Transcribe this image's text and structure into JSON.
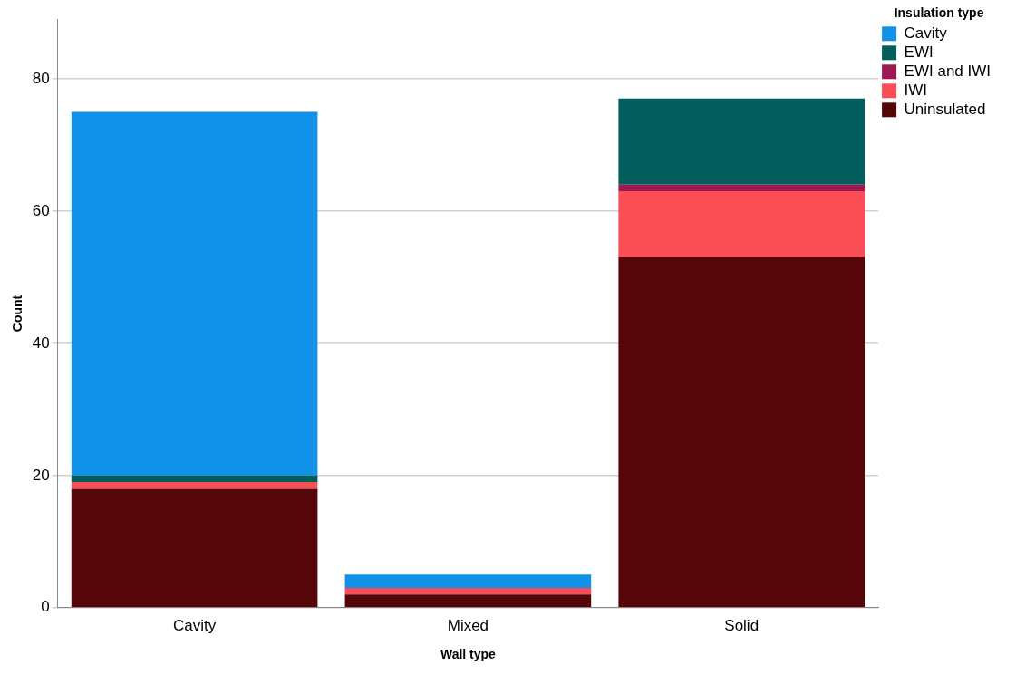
{
  "chart_data": {
    "type": "bar",
    "xlabel": "Wall type",
    "ylabel": "Count",
    "legend_title": "Insulation type",
    "categories": [
      "Cavity",
      "Mixed",
      "Solid"
    ],
    "series": [
      {
        "name": "Uninsulated",
        "color": "#560509",
        "values": [
          18,
          2,
          53
        ]
      },
      {
        "name": "IWI",
        "color": "#fa4d56",
        "values": [
          1,
          1,
          10
        ]
      },
      {
        "name": "EWI and IWI",
        "color": "#9f1853",
        "values": [
          0,
          0,
          1
        ]
      },
      {
        "name": "EWI",
        "color": "#025d5d",
        "values": [
          1,
          0,
          13
        ]
      },
      {
        "name": "Cavity",
        "color": "#1192e8",
        "values": [
          55,
          2,
          0
        ]
      }
    ],
    "stacked": true,
    "ylim": [
      0,
      89
    ],
    "yticks": [
      0,
      20,
      40,
      60,
      80
    ],
    "grid": "y",
    "legend": "top right"
  }
}
